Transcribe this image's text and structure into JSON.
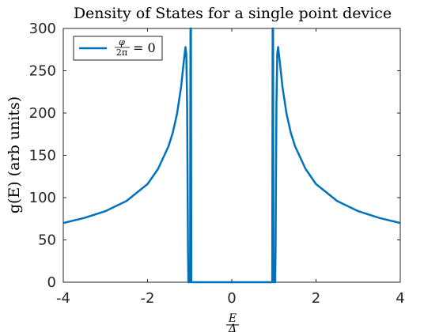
{
  "chart_data": {
    "type": "line",
    "title": "Density of States for a single point device",
    "ylabel": "g(E) (arb units)",
    "xlabel": {
      "numerator": "E",
      "denominator": "Δ"
    },
    "xlim": [
      -4,
      4
    ],
    "ylim": [
      0,
      300
    ],
    "xticks": [
      -4,
      -2,
      0,
      2,
      4
    ],
    "yticks": [
      0,
      50,
      100,
      150,
      200,
      250,
      300
    ],
    "grid": false,
    "legend": {
      "placement": "top-left",
      "entries": [
        {
          "frac_numerator": "φ",
          "frac_denominator": "2π",
          "suffix": "= 0"
        }
      ]
    },
    "series": [
      {
        "color": "#0072BD",
        "x": [
          -4.0,
          -3.5,
          -3.0,
          -2.5,
          -2.0,
          -1.75,
          -1.5,
          -1.4,
          -1.3,
          -1.2,
          -1.15,
          -1.1,
          -1.08,
          -1.06,
          -1.05,
          -1.04,
          -1.03,
          -1.02,
          -1.01,
          -1.0,
          -0.99,
          -0.98,
          -0.97,
          -0.96,
          0.96,
          0.97,
          0.98,
          0.99,
          1.0,
          1.01,
          1.02,
          1.03,
          1.04,
          1.05,
          1.06,
          1.08,
          1.1,
          1.15,
          1.2,
          1.3,
          1.4,
          1.5,
          1.75,
          2.0,
          2.5,
          3.0,
          3.5,
          4.0
        ],
        "y": [
          70,
          76,
          84,
          96,
          116,
          134,
          161,
          177,
          199,
          232,
          256,
          278,
          270,
          210,
          125,
          40,
          0,
          0,
          0,
          0,
          0,
          300,
          300,
          0,
          0,
          300,
          300,
          0,
          0,
          0,
          0,
          0,
          40,
          125,
          210,
          270,
          278,
          256,
          232,
          199,
          177,
          161,
          134,
          116,
          96,
          84,
          76,
          70
        ]
      }
    ]
  }
}
